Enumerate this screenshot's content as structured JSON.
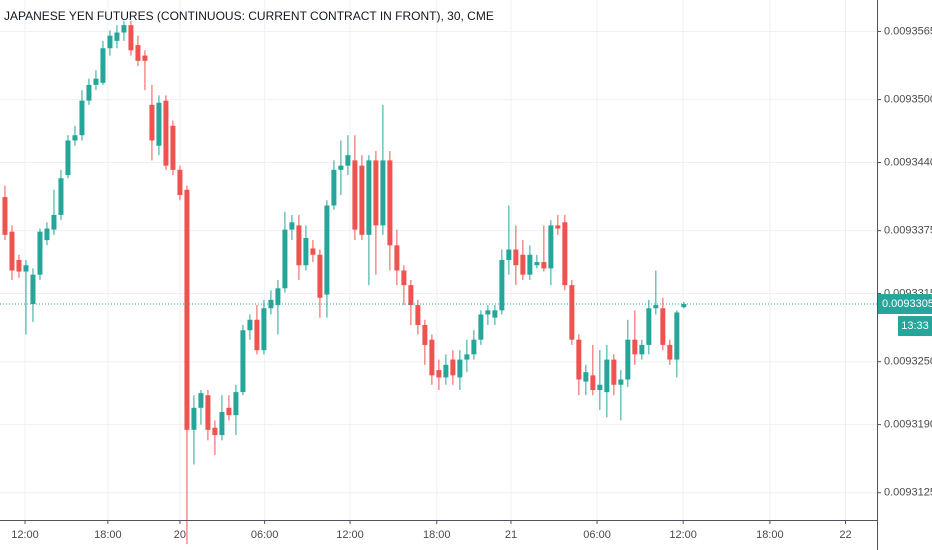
{
  "chart_data": {
    "type": "candlestick",
    "title": "JAPANESE YEN FUTURES (CONTINUOUS: CURRENT CONTRACT IN FRONT), 30, CME",
    "up_color": "#26a69a",
    "down_color": "#ef5350",
    "grid": true,
    "ylim": [
      0.0093099,
      0.0093595
    ],
    "yticks": [
      0.0093125,
      {
        "value": 0.009319,
        "label": "0.0093190"
      },
      {
        "value": 0.009325,
        "label": "0.0093250"
      },
      0.0093315,
      0.0093375,
      {
        "value": 0.009344,
        "label": "0.0093440"
      },
      {
        "value": 0.00935,
        "label": "0.0093500"
      },
      0.0093565
    ],
    "xlim": [
      -0.71,
      124.6
    ],
    "xticks": [
      {
        "value": 2.86,
        "label": "12:00"
      },
      {
        "value": 14.7,
        "label": "18:00"
      },
      {
        "value": 25,
        "label": "20"
      },
      {
        "value": 37.1,
        "label": "06:00"
      },
      {
        "value": 49.3,
        "label": "12:00"
      },
      {
        "value": 61.7,
        "label": "18:00"
      },
      {
        "value": 72.3,
        "label": "21"
      },
      {
        "value": 84.6,
        "label": "06:00"
      },
      {
        "value": 96.9,
        "label": "12:00"
      },
      {
        "value": 109.3,
        "label": "18:00"
      },
      {
        "value": 120.1,
        "label": "22"
      }
    ],
    "last_price": 0.0093305,
    "countdown": "13:33",
    "open": [
      0.0093407,
      0.0093374,
      0.0093347,
      0.0093336,
      0.0093305,
      0.0093333,
      0.0093366,
      0.0093376,
      0.009339,
      0.0093428,
      0.0093461,
      0.0093466,
      0.0093499,
      0.0093514,
      0.0093516,
      0.0093549,
      0.0093556,
      0.0093564,
      0.0093571,
      0.0093552,
      0.0093542,
      0.0093495,
      0.0093456,
      0.0093499,
      0.0093475,
      0.0093433,
      0.0093414,
      0.0093185,
      0.0093206,
      0.0093218,
      0.0093187,
      0.009318,
      0.0093206,
      0.0093199,
      0.0093221,
      0.009328,
      0.009329,
      0.0093261,
      0.0093301,
      0.0093304,
      0.009332,
      0.0093376,
      0.009338,
      0.0093342,
      0.0093358,
      0.0093352,
      0.0093314,
      0.0093399,
      0.0093433,
      0.0093437,
      0.0093442,
      0.0093437,
      0.0093371,
      0.0093442,
      0.009338,
      0.0093442,
      0.0093361,
      0.0093337,
      0.0093323,
      0.0093304,
      0.0093285,
      0.0093271,
      0.0093242,
      0.0093235,
      0.0093252,
      0.0093235,
      0.0093252,
      0.0093257,
      0.0093271,
      0.0093295,
      0.0093292,
      0.0093299,
      0.0093347,
      0.0093357,
      0.0093352,
      0.0093333,
      0.0093342,
      0.0093345,
      0.0093339,
      0.009338,
      0.0093383,
      0.0093323,
      0.0093271,
      0.0093231,
      0.0093237,
      0.0093223,
      0.0093221,
      0.0093252,
      0.0093228,
      0.0093233,
      0.0093271,
      0.0093257,
      0.0093266,
      0.0093301,
      0.0093301,
      0.0093266,
      0.0093252,
      0.0093302
    ],
    "high": [
      0.0093418,
      0.009338,
      0.0093352,
      0.0093347,
      0.0093339,
      0.0093377,
      0.0093383,
      0.0093414,
      0.0093433,
      0.0093466,
      0.0093475,
      0.0093509,
      0.009352,
      0.0093528,
      0.0093556,
      0.0093566,
      0.0093571,
      0.0093575,
      0.0093575,
      0.0093561,
      0.0093547,
      0.0093514,
      0.0093504,
      0.0093504,
      0.009348,
      0.0093437,
      0.0093418,
      0.0093218,
      0.0093223,
      0.0093223,
      0.0093194,
      0.0093218,
      0.0093218,
      0.0093228,
      0.0093285,
      0.0093295,
      0.0093304,
      0.0093309,
      0.0093318,
      0.0093328,
      0.0093393,
      0.009339,
      0.009339,
      0.009338,
      0.0093366,
      0.0093357,
      0.0093404,
      0.0093442,
      0.0093461,
      0.0093466,
      0.0093466,
      0.0093447,
      0.0093447,
      0.0093451,
      0.0093495,
      0.0093451,
      0.0093376,
      0.0093342,
      0.0093328,
      0.0093309,
      0.009329,
      0.0093276,
      0.0093252,
      0.0093257,
      0.0093261,
      0.0093261,
      0.0093271,
      0.009328,
      0.0093299,
      0.0093304,
      0.0093304,
      0.0093357,
      0.0093399,
      0.009338,
      0.0093366,
      0.0093361,
      0.0093352,
      0.009338,
      0.0093385,
      0.009339,
      0.009339,
      0.0093328,
      0.0093276,
      0.0093247,
      0.0093266,
      0.0093261,
      0.0093266,
      0.0093257,
      0.0093242,
      0.009329,
      0.0093299,
      0.0093271,
      0.0093309,
      0.0093337,
      0.0093311,
      0.0093271,
      0.0093299,
      0.0093307
    ],
    "low": [
      0.0093366,
      0.0093328,
      0.009333,
      0.0093276,
      0.0093288,
      0.0093328,
      0.0093361,
      0.0093371,
      0.0093385,
      0.0093425,
      0.0093456,
      0.0093461,
      0.0093495,
      0.0093509,
      0.0093514,
      0.0093542,
      0.0093549,
      0.0093556,
      0.0093542,
      0.0093532,
      0.0093509,
      0.0093442,
      0.0093447,
      0.0093433,
      0.0093428,
      0.0093404,
      0.0093076,
      0.0093152,
      0.009319,
      0.0093175,
      0.0093161,
      0.0093175,
      0.0093194,
      0.009318,
      0.0093218,
      0.0093271,
      0.0093257,
      0.0093257,
      0.0093295,
      0.0093276,
      0.0093316,
      0.0093366,
      0.0093328,
      0.0093337,
      0.0093345,
      0.0093292,
      0.0093292,
      0.0093395,
      0.0093409,
      0.0093428,
      0.0093366,
      0.0093366,
      0.0093323,
      0.0093333,
      0.0093371,
      0.0093337,
      0.0093323,
      0.0093304,
      0.0093285,
      0.0093276,
      0.0093247,
      0.0093228,
      0.0093223,
      0.0093228,
      0.0093228,
      0.0093223,
      0.009324,
      0.0093252,
      0.0093266,
      0.0093285,
      0.0093285,
      0.0093295,
      0.0093333,
      0.0093323,
      0.0093328,
      0.0093328,
      0.0093339,
      0.0093336,
      0.0093323,
      0.0093371,
      0.0093318,
      0.0093266,
      0.0093218,
      0.0093218,
      0.0093218,
      0.0093204,
      0.0093197,
      0.0093218,
      0.0093194,
      0.0093226,
      0.0093247,
      0.0093252,
      0.0093257,
      0.0093295,
      0.0093261,
      0.0093247,
      0.0093235,
      0.0093301
    ],
    "close": [
      0.0093371,
      0.0093337,
      0.0093336,
      0.0093342,
      0.0093333,
      0.0093374,
      0.0093377,
      0.009339,
      0.0093425,
      0.0093461,
      0.0093466,
      0.0093499,
      0.0093514,
      0.009352,
      0.0093549,
      0.0093561,
      0.0093564,
      0.0093571,
      0.0093547,
      0.0093537,
      0.0093537,
      0.0093461,
      0.0093497,
      0.0093437,
      0.0093433,
      0.0093409,
      0.0093185,
      0.0093206,
      0.009322,
      0.0093185,
      0.009318,
      0.0093202,
      0.0093199,
      0.0093221,
      0.009328,
      0.009329,
      0.0093261,
      0.0093301,
      0.0093309,
      0.009332,
      0.0093376,
      0.0093383,
      0.0093342,
      0.0093368,
      0.0093352,
      0.0093311,
      0.0093399,
      0.0093433,
      0.0093437,
      0.0093447,
      0.0093376,
      0.0093371,
      0.0093442,
      0.009338,
      0.0093442,
      0.0093361,
      0.0093337,
      0.0093323,
      0.0093304,
      0.0093285,
      0.0093266,
      0.0093237,
      0.0093235,
      0.0093247,
      0.0093237,
      0.0093252,
      0.0093257,
      0.0093271,
      0.0093295,
      0.0093299,
      0.0093299,
      0.0093347,
      0.0093357,
      0.0093342,
      0.0093333,
      0.0093352,
      0.0093345,
      0.0093339,
      0.009338,
      0.0093377,
      0.0093323,
      0.0093271,
      0.0093233,
      0.009324,
      0.0093223,
      0.0093228,
      0.0093252,
      0.0093228,
      0.0093233,
      0.0093271,
      0.0093257,
      0.0093266,
      0.0093301,
      0.0093304,
      0.0093266,
      0.0093252,
      0.0093297,
      0.0093305
    ]
  }
}
